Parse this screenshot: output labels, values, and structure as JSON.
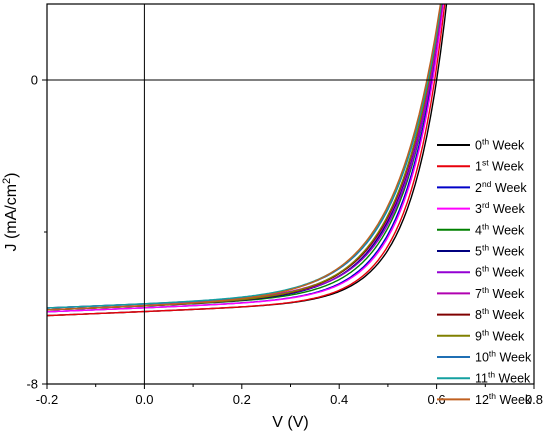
{
  "chart_data": {
    "type": "line",
    "xlabel": "V (V)",
    "ylabel": "J (mA/cm²)",
    "ylabel_base": "J (mA/cm",
    "ylabel_sup": "2",
    "ylabel_end": ")",
    "xlim": [
      -0.2,
      0.8
    ],
    "ylim": [
      -8,
      2
    ],
    "x_ticks": [
      -0.2,
      0.0,
      0.2,
      0.4,
      0.6,
      0.8
    ],
    "x_tick_labels": [
      "-0.2",
      "0.0",
      "0.2",
      "0.4",
      "0.6",
      "0.8"
    ],
    "y_ticks": [
      -8,
      0
    ],
    "y_tick_labels": [
      "-8",
      "0"
    ],
    "grid": false,
    "zero_lines": true,
    "legend_position": "right",
    "series": [
      {
        "name": "0th Week",
        "num": "0",
        "sup": "th",
        "color": "#000000",
        "jsc": -6.2,
        "voc": 0.6,
        "slope": 14.5,
        "jmax_shift": 0.0
      },
      {
        "name": "1st Week",
        "num": "1",
        "sup": "st",
        "color": "#e8000b",
        "jsc": -6.2,
        "voc": 0.596,
        "slope": 14.3,
        "jmax_shift": 0.0
      },
      {
        "name": "2nd Week",
        "num": "2",
        "sup": "nd",
        "color": "#0000c8",
        "jsc": -6.1,
        "voc": 0.59,
        "slope": 13.6,
        "jmax_shift": 0.0
      },
      {
        "name": "3rd Week",
        "num": "3",
        "sup": "rd",
        "color": "#ff00ff",
        "jsc": -6.1,
        "voc": 0.592,
        "slope": 13.8,
        "jmax_shift": 0.0
      },
      {
        "name": "4th Week",
        "num": "4",
        "sup": "th",
        "color": "#008000",
        "jsc": -6.05,
        "voc": 0.588,
        "slope": 13.0,
        "jmax_shift": 0.0
      },
      {
        "name": "5th Week",
        "num": "5",
        "sup": "th",
        "color": "#00007f",
        "jsc": -6.05,
        "voc": 0.586,
        "slope": 12.2,
        "jmax_shift": 0.0
      },
      {
        "name": "6th Week",
        "num": "6",
        "sup": "th",
        "color": "#9400d3",
        "jsc": -6.0,
        "voc": 0.588,
        "slope": 12.6,
        "jmax_shift": 0.0
      },
      {
        "name": "7th Week",
        "num": "7",
        "sup": "th",
        "color": "#b000b0",
        "jsc": -6.0,
        "voc": 0.586,
        "slope": 12.0,
        "jmax_shift": 0.0
      },
      {
        "name": "8th Week",
        "num": "8",
        "sup": "th",
        "color": "#800000",
        "jsc": -6.05,
        "voc": 0.584,
        "slope": 11.8,
        "jmax_shift": 0.0
      },
      {
        "name": "9th Week",
        "num": "9",
        "sup": "th",
        "color": "#808000",
        "jsc": -6.05,
        "voc": 0.584,
        "slope": 11.6,
        "jmax_shift": 0.0
      },
      {
        "name": "10th Week",
        "num": "10",
        "sup": "th",
        "color": "#1f6fb4",
        "jsc": -6.0,
        "voc": 0.582,
        "slope": 11.2,
        "jmax_shift": 0.0
      },
      {
        "name": "11th Week",
        "num": "11",
        "sup": "th",
        "color": "#14a0a0",
        "jsc": -6.0,
        "voc": 0.582,
        "slope": 11.0,
        "jmax_shift": 0.0
      },
      {
        "name": "12th Week",
        "num": "12",
        "sup": "th",
        "color": "#c06020",
        "jsc": -6.05,
        "voc": 0.58,
        "slope": 10.8,
        "jmax_shift": 0.0
      }
    ]
  }
}
